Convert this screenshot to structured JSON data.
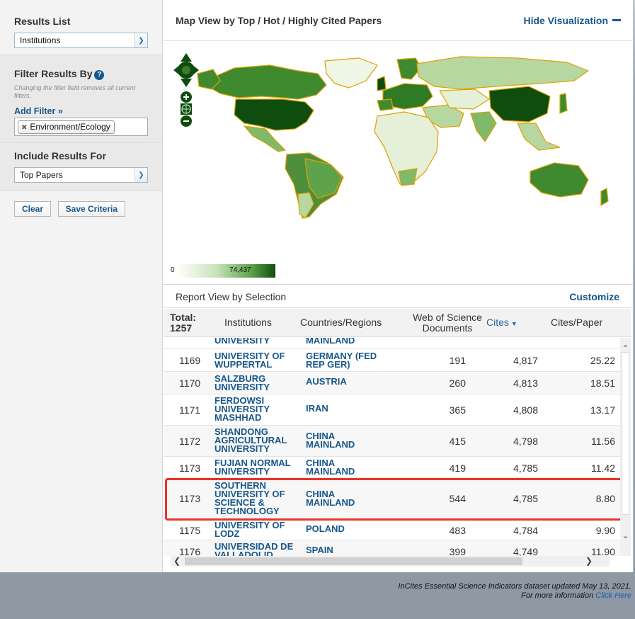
{
  "sidebar": {
    "results_list_title": "Results List",
    "results_list_value": "Institutions",
    "filter_title": "Filter Results By",
    "filter_note": "Changing the filter field removes all current filters.",
    "add_filter": "Add Filter »",
    "active_filter": "Environment/Ecology",
    "include_title": "Include Results For",
    "include_value": "Top Papers",
    "clear_label": "Clear",
    "save_label": "Save Criteria"
  },
  "map": {
    "title": "Map View by Top / Hot / Highly Cited Papers",
    "hide_label": "Hide Visualization",
    "legend_min": "0",
    "legend_max": "74,437",
    "colors": {
      "dark": "#0f4d0e",
      "mid": "#4d8f3a",
      "light": "#b7d7a0",
      "pale": "#e4f0d8",
      "border": "#e0a000"
    }
  },
  "report": {
    "title": "Report View by Selection",
    "customize_label": "Customize",
    "headers": {
      "total_label": "Total:",
      "total_value": "1257",
      "institutions": "Institutions",
      "countries": "Countries/Regions",
      "docs": "Web of Science Documents",
      "cites": "Cites",
      "cites_paper": "Cites/Paper"
    },
    "partial_top": {
      "inst": "UNIVERSITY",
      "ctry": "MAINLAND"
    },
    "rows": [
      {
        "rank": "1169",
        "inst": "UNIVERSITY OF WUPPERTAL",
        "ctry": "GERMANY (FED REP GER)",
        "docs": "191",
        "cites": "4,817",
        "cpp": "25.22"
      },
      {
        "rank": "1170",
        "inst": "SALZBURG UNIVERSITY",
        "ctry": "AUSTRIA",
        "docs": "260",
        "cites": "4,813",
        "cpp": "18.51"
      },
      {
        "rank": "1171",
        "inst": "FERDOWSI UNIVERSITY MASHHAD",
        "ctry": "IRAN",
        "docs": "365",
        "cites": "4,808",
        "cpp": "13.17"
      },
      {
        "rank": "1172",
        "inst": "SHANDONG AGRICULTURAL UNIVERSITY",
        "ctry": "CHINA MAINLAND",
        "docs": "415",
        "cites": "4,798",
        "cpp": "11.56"
      },
      {
        "rank": "1173",
        "inst": "FUJIAN NORMAL UNIVERSITY",
        "ctry": "CHINA MAINLAND",
        "docs": "419",
        "cites": "4,785",
        "cpp": "11.42"
      },
      {
        "rank": "1173",
        "inst": "SOUTHERN UNIVERSITY OF SCIENCE & TECHNOLOGY",
        "ctry": "CHINA MAINLAND",
        "docs": "544",
        "cites": "4,785",
        "cpp": "8.80"
      },
      {
        "rank": "1175",
        "inst": "UNIVERSITY OF LODZ",
        "ctry": "POLAND",
        "docs": "483",
        "cites": "4,784",
        "cpp": "9.90"
      },
      {
        "rank": "1176",
        "inst": "UNIVERSIDAD DE VALLADOLID",
        "ctry": "SPAIN",
        "docs": "399",
        "cites": "4,749",
        "cpp": "11.90"
      }
    ]
  },
  "footer": {
    "line1": "InCites Essential Science Indicators dataset updated May 13, 2021.",
    "line2": "For more information",
    "link": "Click Here"
  }
}
